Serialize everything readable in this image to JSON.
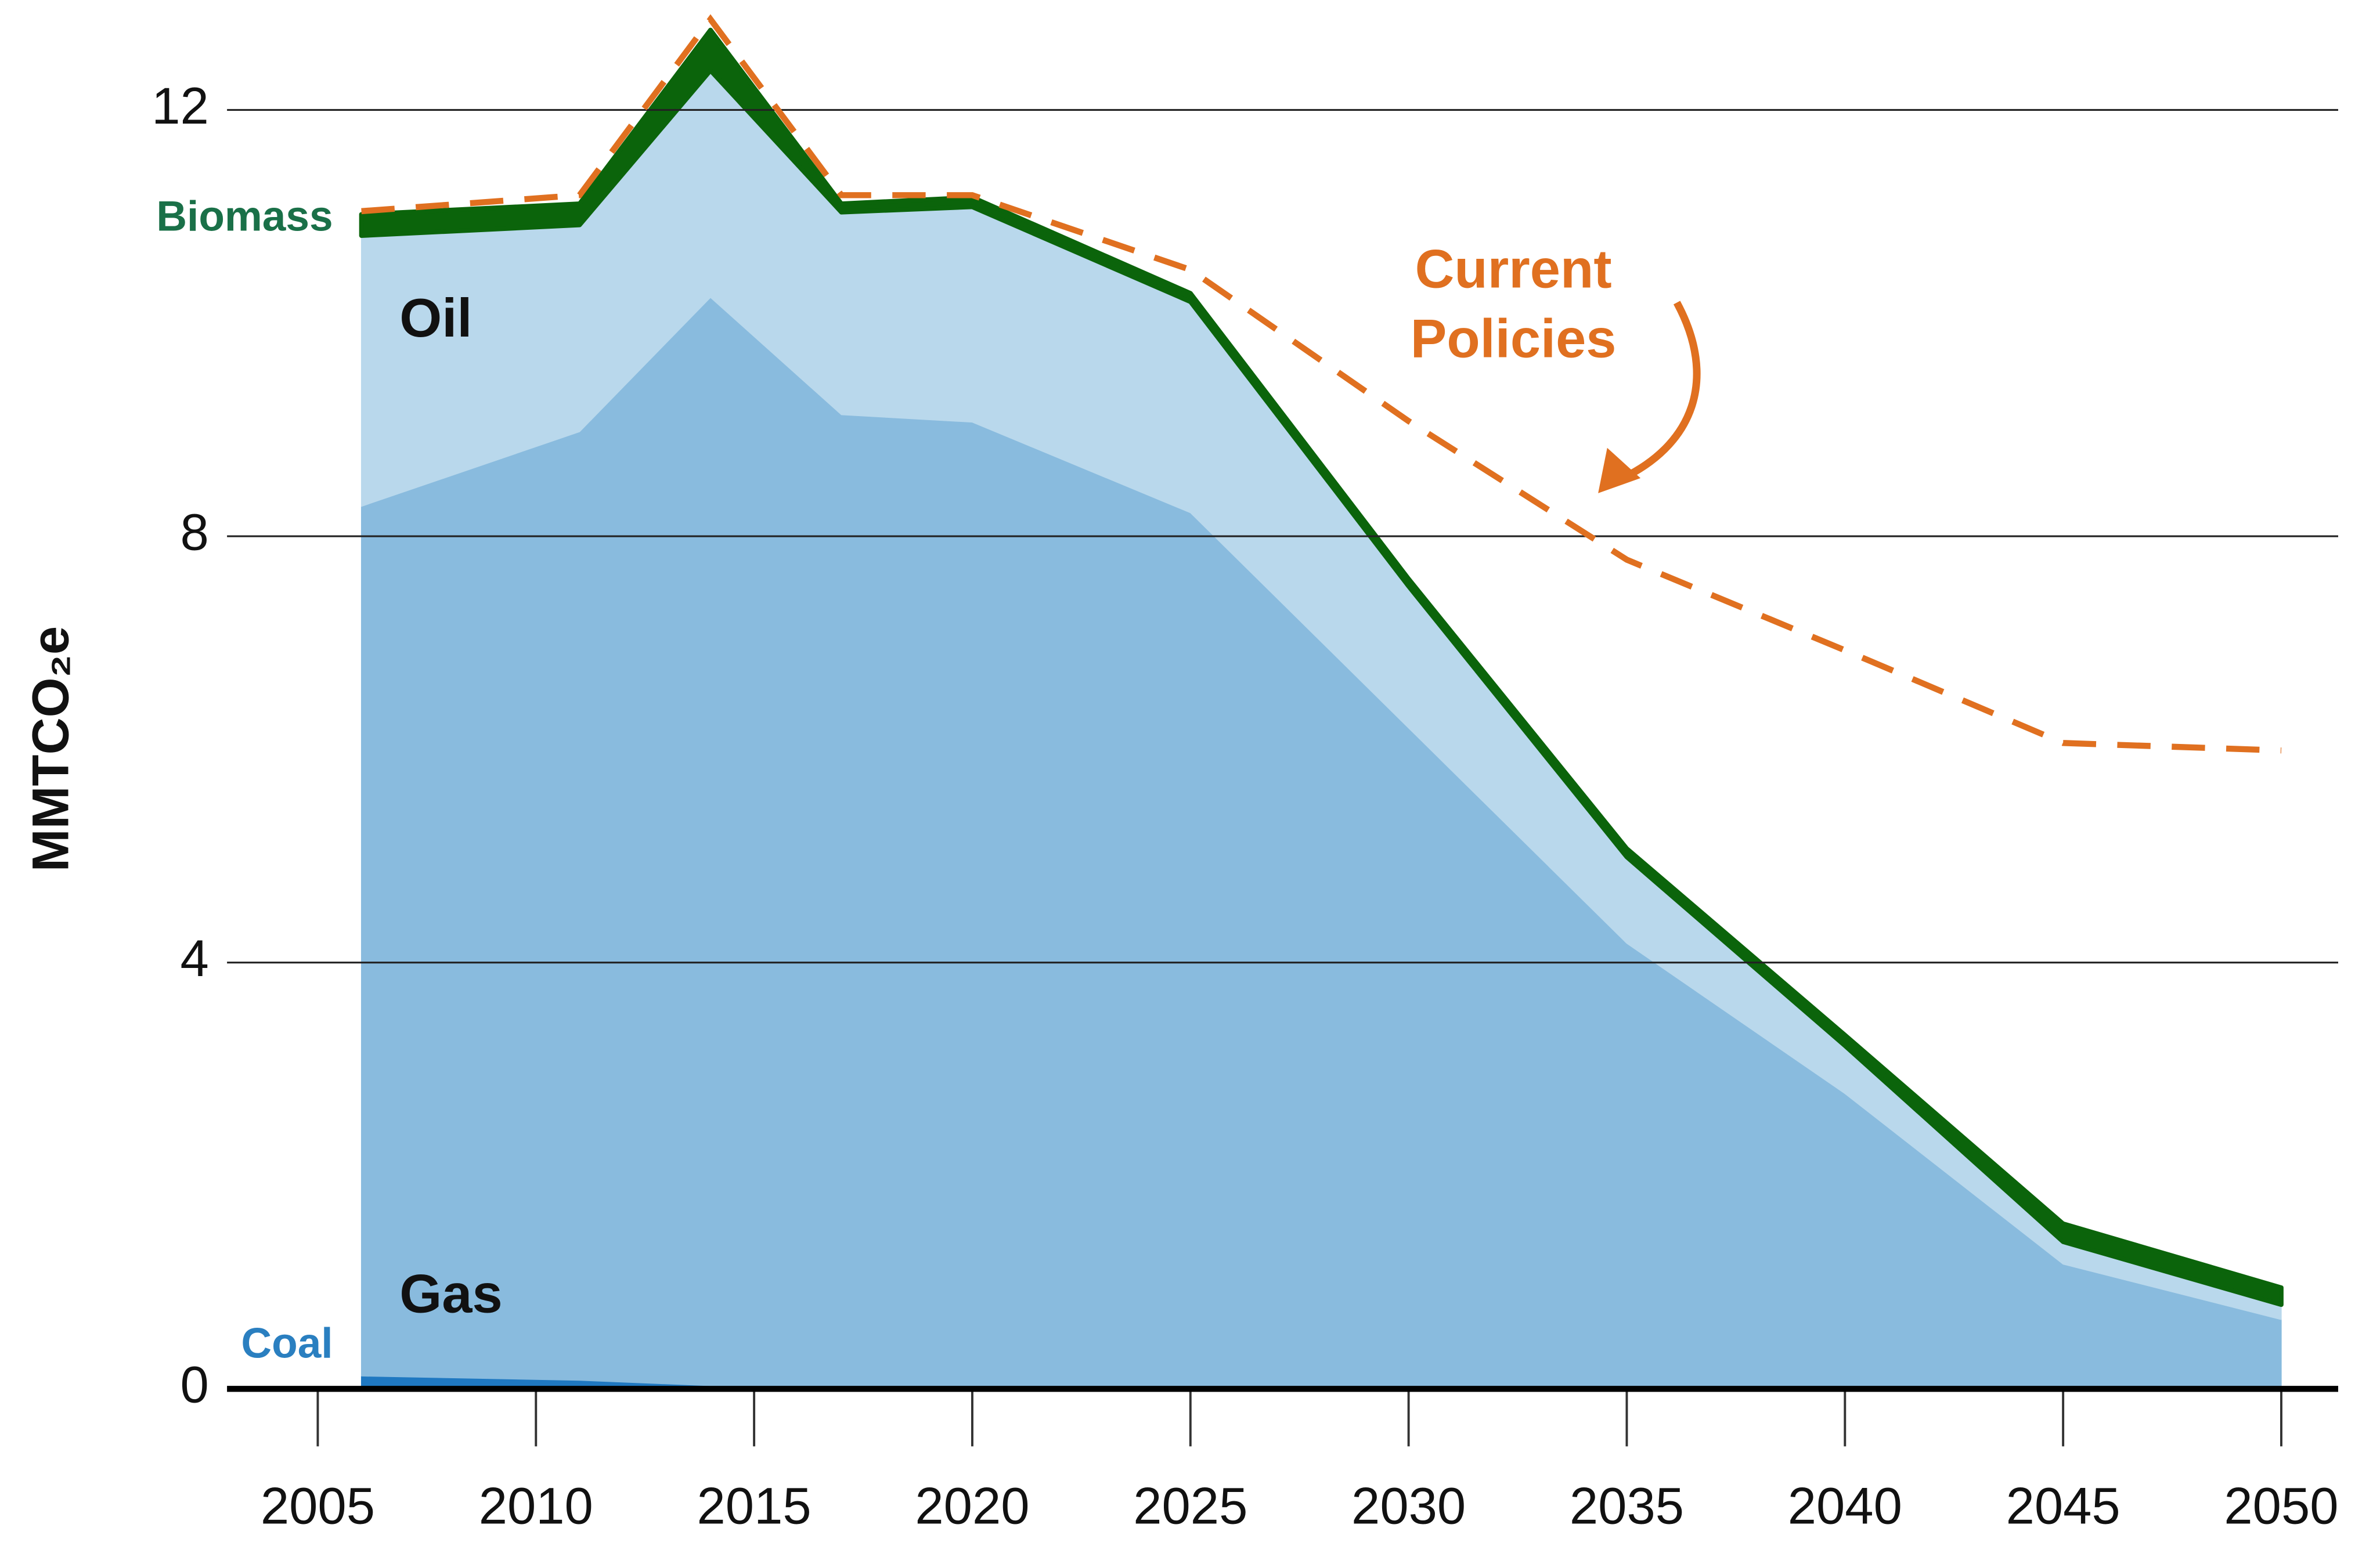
{
  "chart_data": {
    "type": "area",
    "y_label": "MMTCO₂e",
    "x": [
      2006,
      2011,
      2014,
      2017,
      2020,
      2025,
      2030,
      2035,
      2040,
      2045,
      2050
    ],
    "series": [
      {
        "name": "Coal",
        "type": "area",
        "color": "#1f78c1",
        "values": [
          0.12,
          0.08,
          0.03,
          0.01,
          0,
          0,
          0,
          0,
          0,
          0,
          0
        ]
      },
      {
        "name": "Gas",
        "type": "area",
        "color": "#89bbde",
        "values": [
          8.16,
          8.9,
          10.21,
          9.13,
          9.07,
          8.22,
          6.2,
          4.18,
          2.77,
          1.17,
          0.65
        ]
      },
      {
        "name": "Oil",
        "type": "area",
        "color": "#b9d8ec",
        "values": [
          2.54,
          1.94,
          2.13,
          1.9,
          2.02,
          1.98,
          1.33,
          0.81,
          0.45,
          0.21,
          0.14
        ]
      },
      {
        "name": "Biomass",
        "type": "area",
        "color": "#0b640b",
        "values": [
          0.2,
          0.2,
          0.38,
          0.08,
          0.09,
          0.08,
          0.07,
          0.08,
          0.1,
          0.17,
          0.16
        ]
      },
      {
        "name": "Current Policies",
        "type": "line",
        "dashed": true,
        "color": "#e07020",
        "values": [
          11.05,
          11.2,
          12.85,
          11.2,
          11.2,
          10.5,
          9.08,
          7.78,
          6.93,
          6.06,
          5.99
        ]
      }
    ],
    "stacked": true,
    "xlim": [
      2003,
      2051.2
    ],
    "xticks": [
      2005,
      2010,
      2015,
      2020,
      2025,
      2030,
      2035,
      2040,
      2045,
      2050
    ],
    "ylim": [
      0,
      13
    ],
    "yticks": [
      0,
      4,
      8,
      12
    ],
    "grid": true
  }
}
